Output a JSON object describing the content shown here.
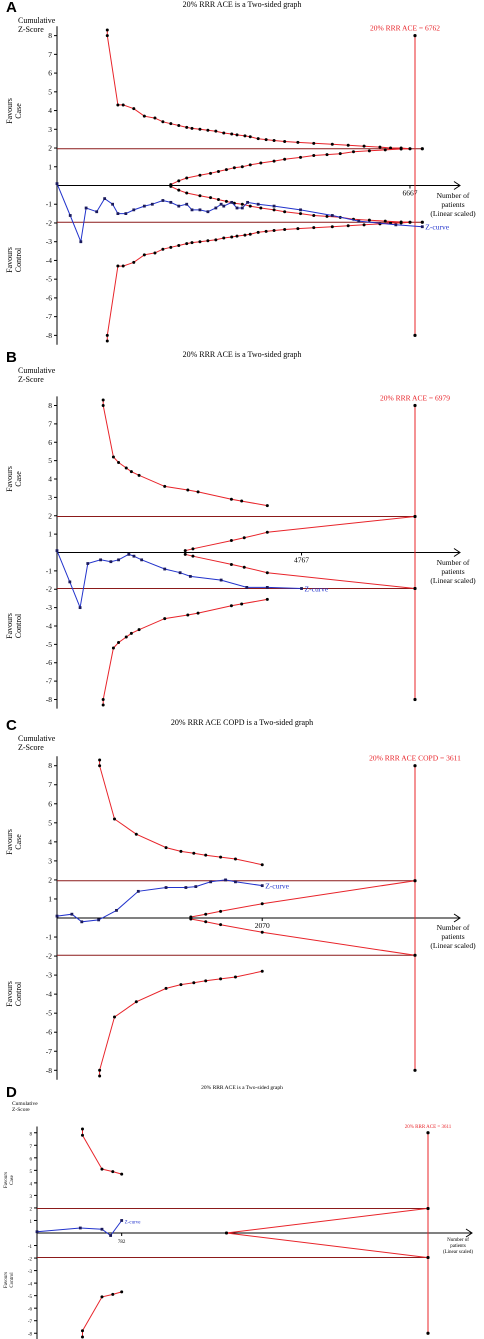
{
  "labels": {
    "y_axis": [
      "Cumulative",
      "Z-Score"
    ],
    "x_axis": [
      "Number of",
      "patients",
      "(Linear scaled)"
    ],
    "favours_case": [
      "Favours",
      "Case"
    ],
    "favours_control": [
      "Favours",
      "Control"
    ],
    "z_curve": "Z-curve"
  },
  "chart_data": [
    {
      "type": "line",
      "panel": "A",
      "title": "20% RRR ACE is a Two-sided graph",
      "ris_label": "20% RRR ACE = 6762",
      "x_tick_label": "6667",
      "x_tick_value": 6667,
      "ris_value": 6762,
      "xlim": [
        0,
        7100
      ],
      "ylim": [
        -8.5,
        8.5
      ],
      "yticks": [
        8,
        7,
        6,
        5,
        4,
        3,
        2,
        1,
        -1,
        -2,
        -3,
        -4,
        -5,
        -6,
        -7,
        -8
      ],
      "conventional_boundary": 1.96,
      "conventional_end": 6900,
      "z_curve": {
        "x": [
          0,
          250,
          450,
          550,
          750,
          900,
          1050,
          1150,
          1300,
          1450,
          1650,
          1800,
          2000,
          2150,
          2300,
          2450,
          2550,
          2700,
          2850,
          3000,
          3100,
          3150,
          3300,
          3400,
          3500,
          3600,
          3800,
          4100,
          4600,
          5200,
          5700,
          6400,
          6900
        ],
        "y": [
          0.1,
          -1.6,
          -3.0,
          -1.2,
          -1.4,
          -0.7,
          -1.0,
          -1.5,
          -1.5,
          -1.3,
          -1.1,
          -1.0,
          -0.8,
          -0.9,
          -1.1,
          -1.0,
          -1.3,
          -1.3,
          -1.4,
          -1.2,
          -1.0,
          -1.1,
          -0.9,
          -1.2,
          -1.2,
          -0.9,
          -1.0,
          -1.1,
          -1.3,
          -1.6,
          -1.9,
          -2.1,
          -2.2
        ]
      },
      "upper_boundary": {
        "x": [
          950,
          950,
          1150,
          1250,
          1450,
          1650,
          1850,
          2000,
          2150,
          2300,
          2450,
          2550,
          2700,
          2850,
          3000,
          3150,
          3300,
          3400,
          3550,
          3650,
          3800,
          3950,
          4100,
          4300,
          4550,
          4850,
          5200,
          5500,
          5800,
          6100,
          6300,
          6500,
          6667
        ],
        "y": [
          8.3,
          8.0,
          4.3,
          4.3,
          4.1,
          3.7,
          3.6,
          3.4,
          3.3,
          3.2,
          3.1,
          3.05,
          3.0,
          2.95,
          2.9,
          2.8,
          2.75,
          2.7,
          2.65,
          2.6,
          2.5,
          2.45,
          2.4,
          2.35,
          2.3,
          2.25,
          2.2,
          2.15,
          2.1,
          2.05,
          2.0,
          2.0,
          1.96
        ]
      },
      "lower_boundary": {
        "x": [
          950,
          950,
          1150,
          1250,
          1450,
          1650,
          1850,
          2000,
          2150,
          2300,
          2450,
          2550,
          2700,
          2850,
          3000,
          3150,
          3300,
          3400,
          3550,
          3650,
          3800,
          3950,
          4100,
          4300,
          4550,
          4850,
          5200,
          5500,
          5800,
          6100,
          6300,
          6500,
          6667
        ],
        "y": [
          -8.3,
          -8.0,
          -4.3,
          -4.3,
          -4.1,
          -3.7,
          -3.6,
          -3.4,
          -3.3,
          -3.2,
          -3.1,
          -3.05,
          -3.0,
          -2.95,
          -2.9,
          -2.8,
          -2.75,
          -2.7,
          -2.65,
          -2.6,
          -2.5,
          -2.45,
          -2.4,
          -2.35,
          -2.3,
          -2.25,
          -2.2,
          -2.15,
          -2.1,
          -2.05,
          -2.0,
          -2.0,
          -1.96
        ]
      },
      "upper_futility": {
        "x": [
          2150,
          2300,
          2450,
          2700,
          2900,
          3050,
          3200,
          3350,
          3500,
          3650,
          3850,
          4100,
          4300,
          4600,
          4850,
          5100,
          5350,
          5600,
          5900,
          6200,
          6500,
          6667
        ],
        "y": [
          0.05,
          0.25,
          0.4,
          0.55,
          0.65,
          0.75,
          0.85,
          0.95,
          1.0,
          1.1,
          1.2,
          1.3,
          1.4,
          1.5,
          1.6,
          1.65,
          1.7,
          1.8,
          1.85,
          1.9,
          1.95,
          1.96
        ]
      },
      "lower_futility": {
        "x": [
          2150,
          2300,
          2450,
          2700,
          2900,
          3050,
          3200,
          3350,
          3500,
          3650,
          3850,
          4100,
          4300,
          4600,
          4850,
          5100,
          5350,
          5600,
          5900,
          6200,
          6500,
          6667
        ],
        "y": [
          -0.05,
          -0.25,
          -0.4,
          -0.55,
          -0.65,
          -0.75,
          -0.85,
          -0.95,
          -1.0,
          -1.1,
          -1.2,
          -1.3,
          -1.4,
          -1.5,
          -1.6,
          -1.65,
          -1.7,
          -1.8,
          -1.85,
          -1.9,
          -1.95,
          -1.96
        ]
      }
    },
    {
      "type": "line",
      "panel": "B",
      "title": "20% RRR ACE is a Two-sided graph",
      "ris_label": "20% RRR ACE = 6979",
      "x_tick_label": "4767",
      "x_tick_value": 4767,
      "ris_value": 6979,
      "xlim": [
        0,
        7800
      ],
      "ylim": [
        -8.5,
        8.5
      ],
      "yticks": [
        8,
        7,
        6,
        5,
        4,
        3,
        2,
        1,
        -1,
        -2,
        -3,
        -4,
        -5,
        -6,
        -7,
        -8
      ],
      "conventional_boundary": 1.96,
      "conventional_end": 6979,
      "z_curve": {
        "x": [
          0,
          250,
          450,
          600,
          850,
          1050,
          1200,
          1400,
          1500,
          1650,
          2100,
          2400,
          2600,
          3200,
          3700,
          4100,
          4767
        ],
        "y": [
          0.1,
          -1.6,
          -3.0,
          -0.6,
          -0.4,
          -0.5,
          -0.4,
          -0.1,
          -0.2,
          -0.4,
          -0.9,
          -1.1,
          -1.3,
          -1.5,
          -1.9,
          -1.9,
          -1.96
        ]
      },
      "upper_boundary": {
        "x": [
          900,
          900,
          1100,
          1200,
          1350,
          1450,
          1600,
          2100,
          2550,
          2750,
          3400,
          3600,
          4100
        ],
        "y": [
          8.3,
          8.0,
          5.2,
          4.9,
          4.6,
          4.4,
          4.2,
          3.6,
          3.4,
          3.3,
          2.9,
          2.8,
          2.55
        ]
      },
      "lower_boundary": {
        "x": [
          900,
          900,
          1100,
          1200,
          1350,
          1450,
          1600,
          2100,
          2550,
          2750,
          3400,
          3600,
          4100
        ],
        "y": [
          -8.3,
          -8.0,
          -5.2,
          -4.9,
          -4.6,
          -4.4,
          -4.2,
          -3.6,
          -3.4,
          -3.3,
          -2.9,
          -2.8,
          -2.55
        ]
      },
      "upper_futility": {
        "x": [
          2500,
          2650,
          3400,
          3650,
          4100,
          6979
        ],
        "y": [
          0.1,
          0.2,
          0.65,
          0.8,
          1.1,
          1.96
        ]
      },
      "lower_futility": {
        "x": [
          2500,
          2650,
          3400,
          3650,
          4100,
          6979
        ],
        "y": [
          -0.1,
          -0.2,
          -0.65,
          -0.8,
          -1.1,
          -1.96
        ]
      }
    },
    {
      "type": "line",
      "panel": "C",
      "title": "20% RRR ACE COPD is a Two-sided graph",
      "ris_label": "20% RRR ACE COPD = 3611",
      "x_tick_label": "2070",
      "x_tick_value": 2070,
      "ris_value": 3611,
      "xlim": [
        0,
        4000
      ],
      "ylim": [
        -8.5,
        8.5
      ],
      "yticks": [
        8,
        7,
        6,
        5,
        4,
        3,
        2,
        1,
        -1,
        -2,
        -3,
        -4,
        -5,
        -6,
        -7,
        -8
      ],
      "conventional_boundary": 1.96,
      "conventional_end": 3611,
      "z_curve": {
        "x": [
          0,
          150,
          250,
          420,
          600,
          820,
          1100,
          1300,
          1400,
          1550,
          1700,
          1800,
          2070
        ],
        "y": [
          0.1,
          0.2,
          -0.2,
          -0.1,
          0.4,
          1.4,
          1.6,
          1.6,
          1.65,
          1.9,
          2.0,
          1.9,
          1.7
        ]
      },
      "upper_boundary": {
        "x": [
          430,
          430,
          580,
          800,
          1100,
          1250,
          1380,
          1500,
          1650,
          1800,
          2070
        ],
        "y": [
          8.3,
          8.0,
          5.2,
          4.4,
          3.7,
          3.5,
          3.4,
          3.3,
          3.2,
          3.1,
          2.8
        ]
      },
      "lower_boundary": {
        "x": [
          430,
          430,
          580,
          800,
          1100,
          1250,
          1380,
          1500,
          1650,
          1800,
          2070
        ],
        "y": [
          -8.3,
          -8.0,
          -5.2,
          -4.4,
          -3.7,
          -3.5,
          -3.4,
          -3.3,
          -3.2,
          -3.1,
          -2.8
        ]
      },
      "upper_futility": {
        "x": [
          1350,
          1500,
          1650,
          2070,
          3611
        ],
        "y": [
          0.05,
          0.2,
          0.35,
          0.75,
          1.96
        ]
      },
      "lower_futility": {
        "x": [
          1350,
          1500,
          1650,
          2070,
          3611
        ],
        "y": [
          -0.05,
          -0.2,
          -0.35,
          -0.75,
          -1.96
        ]
      }
    },
    {
      "type": "line",
      "panel": "D",
      "title": "20% RRR ACE is a Two-sided graph",
      "ris_label": "20% RRR ACE = 3611",
      "x_tick_label": "782",
      "x_tick_value": 782,
      "ris_value": 3611,
      "xlim": [
        0,
        4000
      ],
      "ylim": [
        -8.5,
        8.5
      ],
      "yticks": [
        8,
        7,
        6,
        5,
        4,
        3,
        2,
        1,
        -1,
        -2,
        -3,
        -4,
        -5,
        -6,
        -7,
        -8
      ],
      "conventional_boundary": 1.96,
      "conventional_end": 3611,
      "z_curve": {
        "x": [
          0,
          400,
          600,
          680,
          782
        ],
        "y": [
          0.1,
          0.4,
          0.3,
          -0.2,
          1.0
        ]
      },
      "upper_boundary": {
        "x": [
          420,
          420,
          600,
          700,
          782
        ],
        "y": [
          8.3,
          7.8,
          5.1,
          4.9,
          4.7
        ]
      },
      "lower_boundary": {
        "x": [
          420,
          420,
          600,
          700,
          782
        ],
        "y": [
          -8.3,
          -7.8,
          -5.1,
          -4.9,
          -4.7
        ]
      },
      "upper_futility": {
        "x": [
          1750,
          3611
        ],
        "y": [
          0.0,
          1.96
        ]
      },
      "lower_futility": {
        "x": [
          1750,
          3611
        ],
        "y": [
          0.0,
          -1.96
        ]
      }
    }
  ]
}
